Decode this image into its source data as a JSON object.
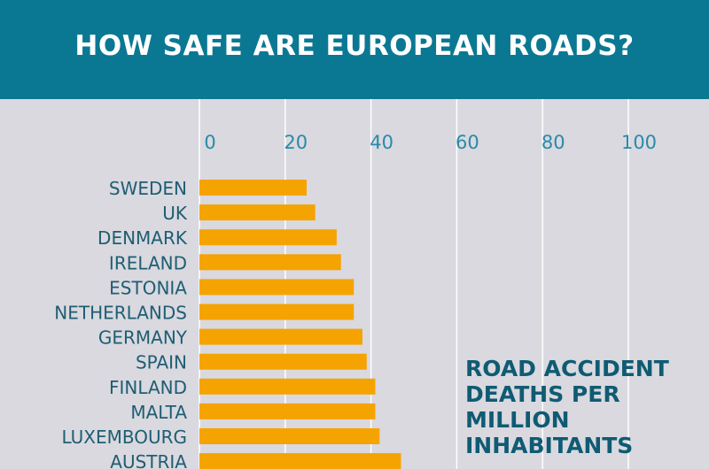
{
  "title": "HOW SAFE ARE EUROPEAN ROADS?",
  "annotation": "ROAD ACCIDENT DEATHS PER MILLION INHABITANTS",
  "colors": {
    "header": "#0b7893",
    "bar": "#f5a300",
    "tick_label": "#2a8aa8",
    "category_label": "#1f5d73",
    "background": "#d9d9df"
  },
  "chart_data": {
    "type": "bar",
    "orientation": "horizontal",
    "title": "HOW SAFE ARE EUROPEAN ROADS?",
    "xlabel": "ROAD ACCIDENT DEATHS PER MILLION INHABITANTS",
    "xlim": [
      0,
      100
    ],
    "xticks": [
      0,
      20,
      40,
      60,
      80,
      100
    ],
    "grid": true,
    "categories": [
      "SWEDEN",
      "UK",
      "DENMARK",
      "IRELAND",
      "ESTONIA",
      "NETHERLANDS",
      "GERMANY",
      "SPAIN",
      "FINLAND",
      "MALTA",
      "LUXEMBOURG",
      "AUSTRIA"
    ],
    "values": [
      25,
      27,
      32,
      33,
      36,
      36,
      38,
      39,
      41,
      41,
      42,
      47
    ]
  }
}
